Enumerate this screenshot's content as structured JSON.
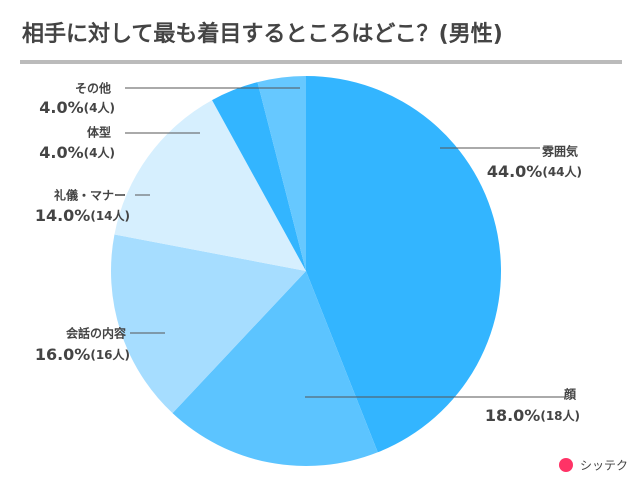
{
  "chart_data": {
    "type": "pie",
    "title": "相手に対して最も着目するところはどこ？(男性)",
    "categories": [
      "雰囲気",
      "顔",
      "会話の内容",
      "礼儀・マナー",
      "体型",
      "その他"
    ],
    "values": [
      44,
      18,
      16,
      14,
      4,
      4
    ],
    "value_labels": [
      "44.0%",
      "18.0%",
      "16.0%",
      "14.0%",
      "4.0%",
      "4.0%"
    ],
    "count_labels": [
      "(44人)",
      "(18人)",
      "(16人)",
      "(14人)",
      "(4人)",
      "(4人)"
    ],
    "colors": [
      "#33b5ff",
      "#5cc4ff",
      "#a6ddff",
      "#d6effe",
      "#33b5ff",
      "#66c8ff"
    ],
    "logo": "シッテク"
  }
}
